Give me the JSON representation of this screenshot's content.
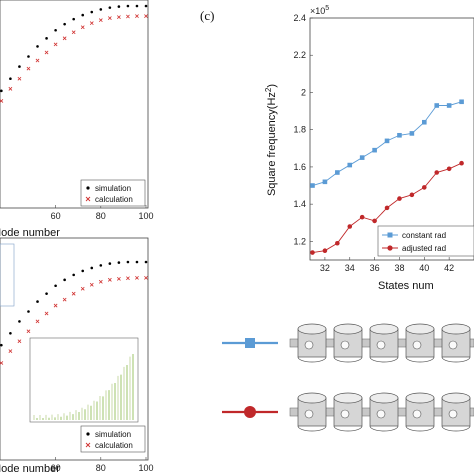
{
  "chart_data": [
    {
      "type": "scatter",
      "panel": "a",
      "xlabel": "Mode number",
      "xlim": [
        0,
        100
      ],
      "xticks": [
        60,
        80,
        100
      ],
      "series": [
        {
          "name": "simulation",
          "color": "#000000",
          "marker": "dot",
          "x": [
            1,
            4,
            8,
            12,
            16,
            20,
            24,
            28,
            32,
            36,
            40,
            44,
            48,
            52,
            56,
            60,
            64,
            68,
            72,
            76,
            80,
            84,
            88,
            92,
            96,
            100
          ],
          "y": [
            0.02,
            0.05,
            0.1,
            0.16,
            0.23,
            0.3,
            0.37,
            0.44,
            0.51,
            0.58,
            0.64,
            0.7,
            0.75,
            0.8,
            0.84,
            0.88,
            0.91,
            0.935,
            0.955,
            0.97,
            0.983,
            0.992,
            0.997,
            1.0,
            1.0,
            1.0
          ]
        },
        {
          "name": "calculation",
          "color": "#d0302f",
          "marker": "x",
          "x": [
            1,
            4,
            8,
            12,
            16,
            20,
            24,
            28,
            32,
            36,
            40,
            44,
            48,
            52,
            56,
            60,
            64,
            68,
            72,
            76,
            80,
            84,
            88,
            92,
            96,
            100
          ],
          "y": [
            0.02,
            0.05,
            0.09,
            0.15,
            0.21,
            0.28,
            0.34,
            0.41,
            0.47,
            0.53,
            0.59,
            0.64,
            0.69,
            0.73,
            0.77,
            0.81,
            0.84,
            0.87,
            0.895,
            0.915,
            0.93,
            0.94,
            0.945,
            0.948,
            0.95,
            0.95
          ]
        }
      ],
      "legend_position": "bottom-right"
    },
    {
      "type": "scatter",
      "panel": "b",
      "xlabel": "Mode number",
      "xlim": [
        0,
        100
      ],
      "xticks": [
        60,
        80,
        100
      ],
      "series": [
        {
          "name": "simulation",
          "color": "#000000",
          "marker": "dot",
          "x": [
            1,
            4,
            8,
            12,
            16,
            20,
            24,
            28,
            32,
            36,
            40,
            44,
            48,
            52,
            56,
            60,
            64,
            68,
            72,
            76,
            80,
            84,
            88,
            92,
            96,
            100
          ],
          "y": [
            0.02,
            0.05,
            0.1,
            0.16,
            0.23,
            0.3,
            0.37,
            0.44,
            0.51,
            0.58,
            0.64,
            0.7,
            0.75,
            0.8,
            0.84,
            0.88,
            0.91,
            0.935,
            0.955,
            0.97,
            0.983,
            0.992,
            0.997,
            1.0,
            1.0,
            1.0
          ]
        },
        {
          "name": "calculation",
          "color": "#d0302f",
          "marker": "x",
          "x": [
            1,
            4,
            8,
            12,
            16,
            20,
            24,
            28,
            32,
            36,
            40,
            44,
            48,
            52,
            56,
            60,
            64,
            68,
            72,
            76,
            80,
            84,
            88,
            92,
            96,
            100
          ],
          "y": [
            0.02,
            0.04,
            0.08,
            0.13,
            0.19,
            0.25,
            0.31,
            0.37,
            0.43,
            0.49,
            0.55,
            0.6,
            0.65,
            0.7,
            0.74,
            0.78,
            0.81,
            0.84,
            0.865,
            0.885,
            0.9,
            0.91,
            0.915,
            0.918,
            0.92,
            0.92
          ]
        }
      ],
      "legend_position": "bottom-right"
    },
    {
      "type": "line",
      "panel": "c",
      "panel_label": "(c)",
      "xlabel": "States num",
      "ylabel": "Square frequency(Hz²)",
      "ylabel_main": "Square frequency(Hz",
      "ylabel_sup": "2",
      "ylabel_close": ")",
      "exponent": "5",
      "xlim": [
        30.8,
        44
      ],
      "ylim": [
        1.1,
        2.4
      ],
      "xticks": [
        32,
        34,
        36,
        38,
        40,
        42
      ],
      "yticks": [
        1.2,
        1.4,
        1.6,
        1.8,
        2,
        2.2,
        2.4
      ],
      "ytick_labels": [
        "1.2",
        "1.4",
        "1.6",
        "1.8",
        "2",
        "2.2",
        "2.4"
      ],
      "series": [
        {
          "name": "constant rad",
          "color": "#5b9bd5",
          "marker": "square",
          "x": [
            31,
            32,
            33,
            34,
            35,
            36,
            37,
            38,
            39,
            40,
            41,
            42,
            43
          ],
          "y": [
            1.5,
            1.52,
            1.57,
            1.61,
            1.65,
            1.69,
            1.74,
            1.77,
            1.78,
            1.84,
            1.93,
            1.93,
            1.95
          ]
        },
        {
          "name": "adjusted rad",
          "color": "#c0282a",
          "marker": "circle",
          "x": [
            31,
            32,
            33,
            34,
            35,
            36,
            37,
            38,
            39,
            40,
            41,
            42,
            43
          ],
          "y": [
            1.14,
            1.15,
            1.19,
            1.28,
            1.33,
            1.31,
            1.38,
            1.43,
            1.45,
            1.49,
            1.57,
            1.59,
            1.62
          ]
        }
      ],
      "legend_position": "bottom-right",
      "grid": false
    }
  ],
  "schematic": {
    "rows": [
      {
        "color": "#5b9bd5",
        "marker": "square",
        "cylinders": 6
      },
      {
        "color": "#c0282a",
        "marker": "circle",
        "cylinders": 6
      }
    ]
  }
}
